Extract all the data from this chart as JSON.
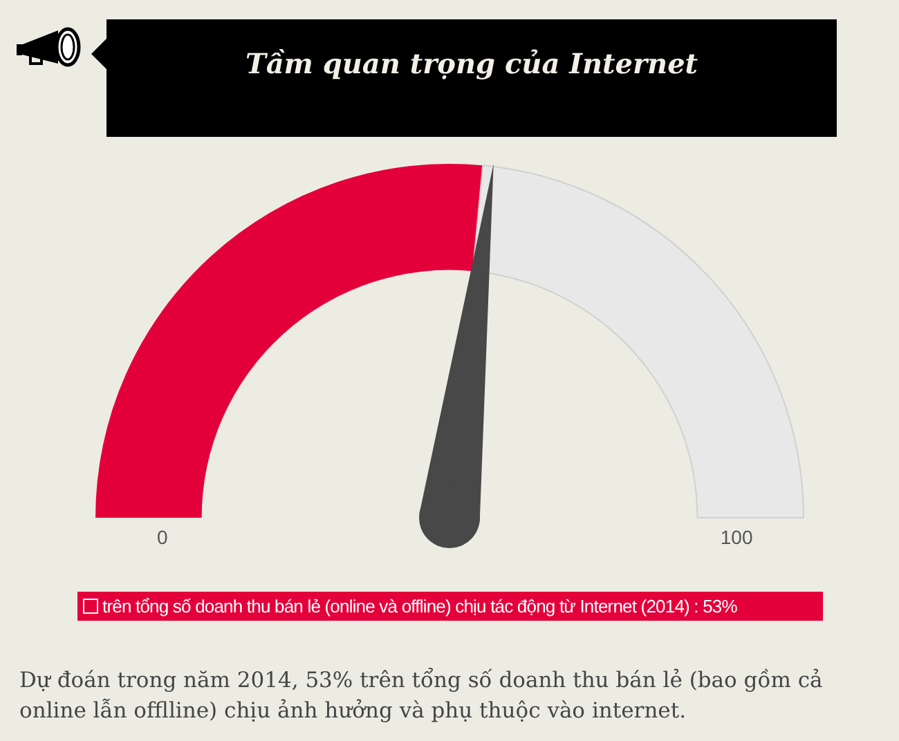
{
  "chart_data": {
    "type": "donut",
    "title": "Tầm quan trọng của Internet",
    "categories": [
      "trên tổng số doanh thu bán lẻ (online và offline) chịu tác động từ Internet (2014) : 53%",
      null
    ],
    "values": [
      53,
      47
    ],
    "colors": [
      "#e4003a",
      "#e8e8e8"
    ],
    "needle": null,
    "legend": "bottom",
    "annotations": [
      "0",
      "100",
      "Dự đoán trong năm 2014, 53% trên tổng số doanh thu bán lẻ (bao gồm cả online lẫn offlline) chịu ảnh hưởng và phụ thuộc vào internet."
    ]
  }
}
